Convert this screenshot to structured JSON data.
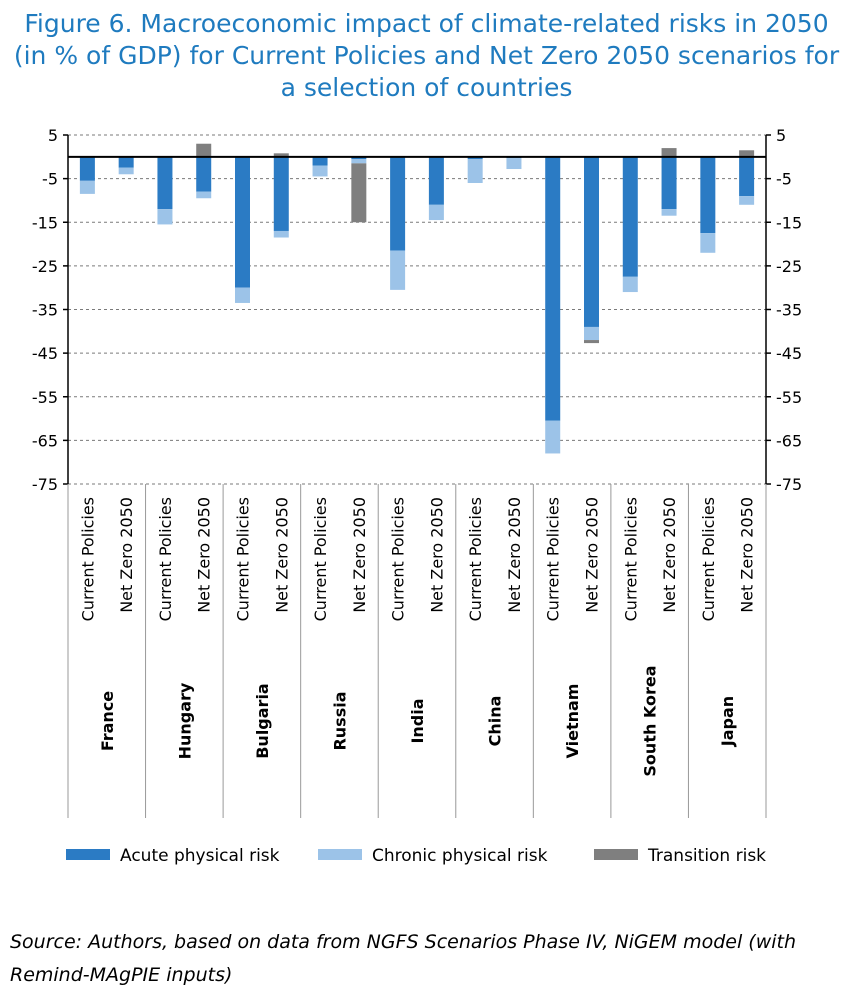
{
  "title_lines": [
    "Figure 6. Macroeconomic impact of climate-related risks in 2050",
    "(in % of GDP) for Current Policies and Net Zero 2050 scenarios for",
    "a selection of countries"
  ],
  "source": "Source: Authors, based on data from NGFS Scenarios Phase IV, NiGEM model (with Remind-MAgPIE inputs)",
  "chart_data": {
    "type": "bar",
    "stacked": true,
    "ylim": [
      -75,
      5
    ],
    "yticks": [
      5,
      -5,
      -15,
      -25,
      -35,
      -45,
      -55,
      -65,
      -75
    ],
    "ytick_labels": [
      "5",
      "-5",
      "-15",
      "-25",
      "-35",
      "-45",
      "-55",
      "-65",
      "-75"
    ],
    "scenarios": [
      "Current Policies",
      "Net Zero 2050"
    ],
    "countries": [
      "France",
      "Hungary",
      "Bulgaria",
      "Russia",
      "India",
      "China",
      "Vietnam",
      "South Korea",
      "Japan"
    ],
    "series": [
      {
        "name": "Acute physical risk",
        "color": "#2b7bc4",
        "values": [
          -5.5,
          -2.5,
          -12,
          -8,
          -30,
          -17,
          -2,
          -0.5,
          -21.5,
          -11,
          -0.5,
          -0.3,
          -60.5,
          -39,
          -27.5,
          -12,
          -17.5,
          -9
        ]
      },
      {
        "name": "Chronic physical risk",
        "color": "#9cc3e8",
        "values": [
          -3,
          -1.5,
          -3.5,
          -1.5,
          -3.5,
          -1.5,
          -2.5,
          -1,
          -9,
          -3.5,
          -5.5,
          -2.5,
          -7.5,
          -3,
          -3.5,
          -1.5,
          -4.5,
          -2
        ]
      },
      {
        "name": "Transition risk",
        "color": "#7f7f7f",
        "values": [
          0,
          0,
          0,
          3,
          0,
          0.8,
          0,
          -13.5,
          0,
          0,
          0,
          0,
          0,
          -0.7,
          0,
          2,
          0,
          1.5
        ]
      }
    ],
    "legend_position": "bottom"
  }
}
